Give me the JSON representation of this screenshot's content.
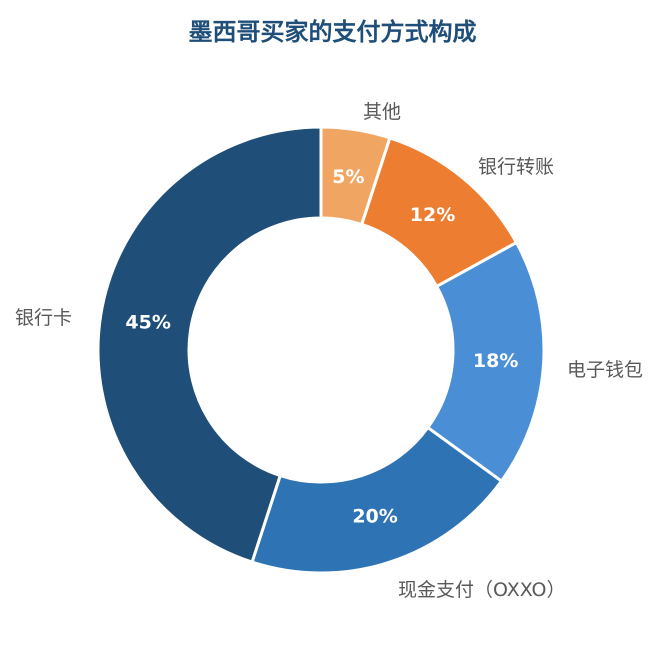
{
  "chart_data": {
    "type": "pie",
    "variant": "donut",
    "title": "墨西哥买家的支付方式构成",
    "slices": [
      {
        "label": "其他",
        "value": 5,
        "display": "5%",
        "color": "#f0a662"
      },
      {
        "label": "银行转账",
        "value": 12,
        "display": "12%",
        "color": "#ed7d31"
      },
      {
        "label": "电子钱包",
        "value": 18,
        "display": "18%",
        "color": "#4a8fd6"
      },
      {
        "label": "现金支付（OXXO）",
        "value": 20,
        "display": "20%",
        "color": "#2e74b5"
      },
      {
        "label": "银行卡",
        "value": 45,
        "display": "45%",
        "color": "#1f4e79"
      }
    ],
    "start": "12 o'clock",
    "direction": "clockwise",
    "legend": "none (category labels placed beside slices)"
  },
  "colors": {
    "title": "#1f4e79",
    "category_label": "#595959",
    "percent_label": "#ffffff"
  }
}
